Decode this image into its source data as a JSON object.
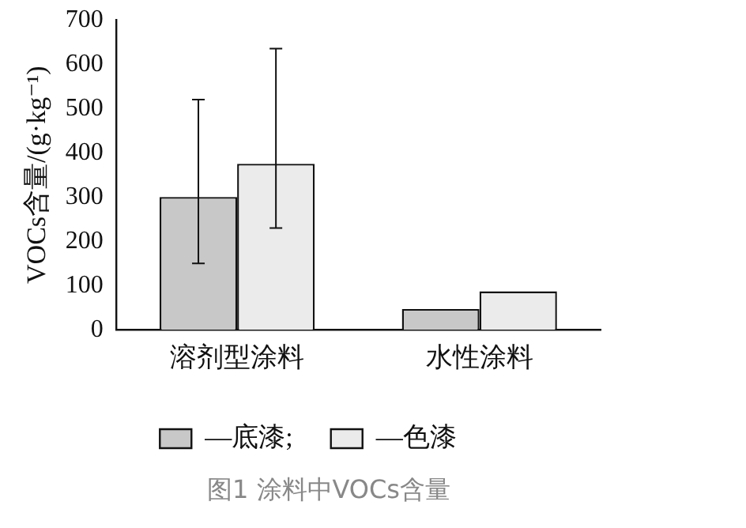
{
  "chart_data": {
    "type": "bar",
    "title": "图1 涂料中VOCs含量",
    "ylabel": "VOCs含量/(g·kg⁻¹)",
    "categories": [
      "溶剂型涂料",
      "水性涂料"
    ],
    "series": [
      {
        "name": "—底漆;",
        "color": "#c8c8c8",
        "values": [
          300,
          47
        ],
        "errors": [
          [
            150,
            520
          ],
          null
        ]
      },
      {
        "name": "—色漆",
        "color": "#ebebeb",
        "values": [
          375,
          87
        ],
        "errors": [
          [
            230,
            635
          ],
          null
        ]
      }
    ],
    "ylim": [
      0,
      700
    ],
    "yticks": [
      0,
      100,
      200,
      300,
      400,
      500,
      600,
      700
    ],
    "grid": false,
    "legend": "bottom"
  }
}
